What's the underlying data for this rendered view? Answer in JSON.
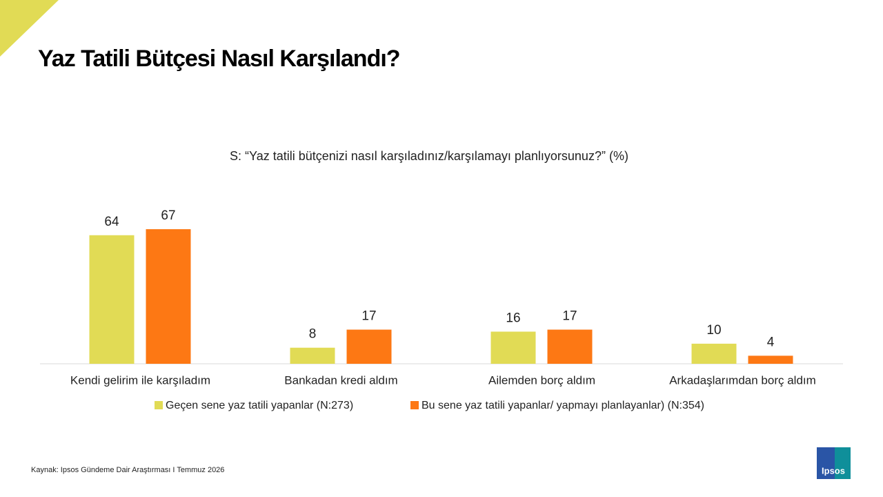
{
  "chart_data": {
    "type": "bar",
    "title": "Yaz Tatili Bütçesi Nasıl Karşılandı?",
    "subtitle": "S: “Yaz tatili bütçenizi nasıl karşıladınız/karşılamayı planlıyorsunuz?” (%)",
    "categories": [
      "Kendi gelirim ile karşıladım",
      "Bankadan kredi aldım",
      "Ailemden borç aldım",
      "Arkadaşlarımdan borç aldım"
    ],
    "series": [
      {
        "name": "Geçen sene yaz tatili yapanlar (N:273)",
        "color": "#e1db55",
        "values": [
          64,
          8,
          16,
          10
        ]
      },
      {
        "name": "Bu sene yaz tatili yapanlar/ yapmayı planlayanlar) (N:354)",
        "color": "#fd7814",
        "values": [
          67,
          17,
          17,
          4
        ]
      }
    ],
    "source": "Kaynak: Ipsos Gündeme Dair Araştırması I Temmuz 2026"
  },
  "logo": "Ipsos"
}
